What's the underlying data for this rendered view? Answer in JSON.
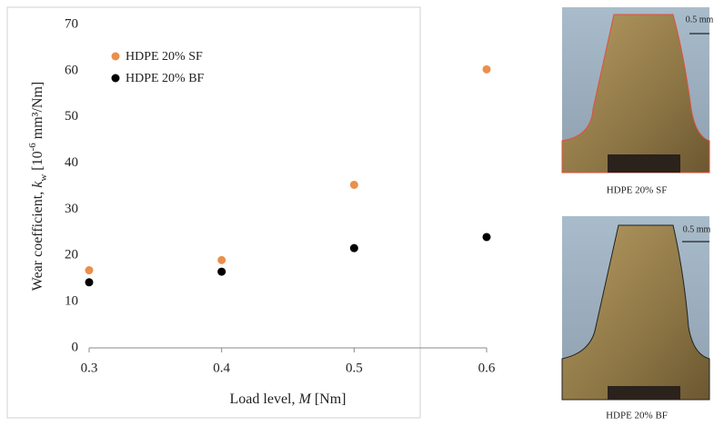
{
  "chart_data": {
    "type": "scatter",
    "xlabel": [
      "Load level, ",
      "M",
      " [Nm]"
    ],
    "ylabel": [
      "Wear coefficient, ",
      "k",
      "w",
      " [10",
      "-6",
      " mm³/Nm]"
    ],
    "xlim": [
      0.3,
      0.6
    ],
    "xticks": [
      0.3,
      0.4,
      0.5,
      0.6
    ],
    "ylim": [
      0,
      70
    ],
    "yticks": [
      0,
      10,
      20,
      30,
      40,
      50,
      60,
      70
    ],
    "grid": false,
    "legend": "upper-left",
    "series": [
      {
        "name": "HDPE 20% SF",
        "color": "#ea8f4c",
        "x": [
          0.3,
          0.4,
          0.5,
          0.6
        ],
        "values": [
          16.8,
          19,
          35.3,
          60.3
        ]
      },
      {
        "name": "HDPE 20% BF",
        "color": "#000000",
        "x": [
          0.3,
          0.4,
          0.5,
          0.6
        ],
        "values": [
          14.2,
          16.5,
          21.6,
          24
        ]
      }
    ]
  },
  "images": [
    {
      "caption": "HDPE 20% SF",
      "scale": "0.5 mm"
    },
    {
      "caption": "HDPE 20% BF",
      "scale": "0.5 mm"
    }
  ]
}
